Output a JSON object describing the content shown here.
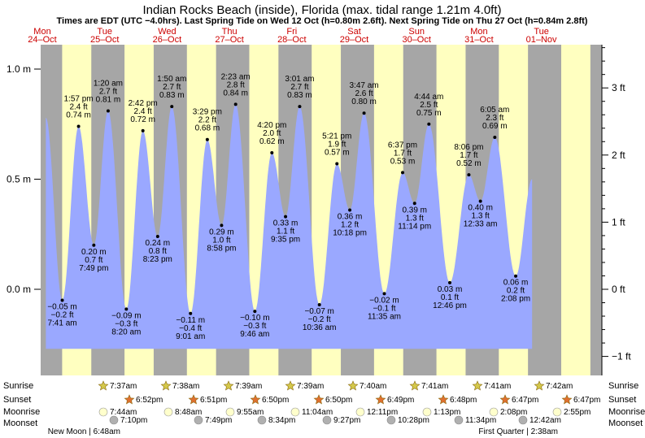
{
  "title": "Indian Rocks Beach (inside), Florida (max. tidal range 1.21m 4.0ft)",
  "subtitle": "Times are EDT (UTC −4.0hrs). Last Spring Tide on Wed 12 Oct (h=0.80m 2.6ft). Next Spring Tide on Thu 27 Oct (h=0.84m 2.8ft)",
  "colors": {
    "water": "#9aa8ff",
    "day": "#ffffc0",
    "night": "#a6a6a6",
    "label": "#cc0000",
    "sun": "#d4c84a",
    "sunset": "#e07030",
    "moonrise": "#ffffcc",
    "moonset": "#b0b0b0"
  },
  "days": [
    {
      "dow": "Mon",
      "date": "24–Oct"
    },
    {
      "dow": "Tue",
      "date": "25–Oct"
    },
    {
      "dow": "Wed",
      "date": "26–Oct"
    },
    {
      "dow": "Thu",
      "date": "27–Oct"
    },
    {
      "dow": "Fri",
      "date": "28–Oct"
    },
    {
      "dow": "Sat",
      "date": "29–Oct"
    },
    {
      "dow": "Sun",
      "date": "30–Oct"
    },
    {
      "dow": "Mon",
      "date": "31–Oct"
    },
    {
      "dow": "Tue",
      "date": "01–Nov"
    }
  ],
  "row_labels": [
    "Sunrise",
    "Sunset",
    "Moonrise",
    "Moonset"
  ],
  "chart_data": {
    "type": "area",
    "ylabel_left_unit": "m",
    "ylabel_right_unit": "ft",
    "ylim_m": [
      -0.27,
      1.07
    ],
    "left_ticks": [
      "1.0 m",
      "0.5 m",
      "0.0 m"
    ],
    "left_tick_values": [
      1.0,
      0.5,
      0.0
    ],
    "right_ticks": [
      "3 ft",
      "2 ft",
      "1 ft",
      "0 ft",
      "−1 ft"
    ],
    "right_tick_values_ft": [
      3,
      2,
      1,
      0,
      -1
    ],
    "tides": [
      {
        "day": 0,
        "hour": 7.68,
        "m": -0.05,
        "l1": "−0.05 m",
        "l2": "−0.2 ft",
        "l3": "7:41 am",
        "high": false
      },
      {
        "day": 0,
        "hour": 13.95,
        "m": 0.74,
        "l1": "1:57 pm",
        "l2": "2.4 ft",
        "l3": "0.74 m",
        "high": true
      },
      {
        "day": 0,
        "hour": 19.82,
        "m": 0.2,
        "l1": "0.20 m",
        "l2": "0.7 ft",
        "l3": "7:49 pm",
        "high": false
      },
      {
        "day": 1,
        "hour": 1.33,
        "m": 0.81,
        "l1": "1:20 am",
        "l2": "2.7 ft",
        "l3": "0.81 m",
        "high": true
      },
      {
        "day": 1,
        "hour": 8.33,
        "m": -0.09,
        "l1": "−0.09 m",
        "l2": "−0.3 ft",
        "l3": "8:20 am",
        "high": false
      },
      {
        "day": 1,
        "hour": 14.7,
        "m": 0.72,
        "l1": "2:42 pm",
        "l2": "2.4 ft",
        "l3": "0.72 m",
        "high": true
      },
      {
        "day": 1,
        "hour": 20.38,
        "m": 0.24,
        "l1": "0.24 m",
        "l2": "0.8 ft",
        "l3": "8:23 pm",
        "high": false
      },
      {
        "day": 2,
        "hour": 1.83,
        "m": 0.83,
        "l1": "1:50 am",
        "l2": "2.7 ft",
        "l3": "0.83 m",
        "high": true
      },
      {
        "day": 2,
        "hour": 9.02,
        "m": -0.11,
        "l1": "−0.11 m",
        "l2": "−0.4 ft",
        "l3": "9:01 am",
        "high": false
      },
      {
        "day": 2,
        "hour": 15.48,
        "m": 0.68,
        "l1": "3:29 pm",
        "l2": "2.2 ft",
        "l3": "0.68 m",
        "high": true
      },
      {
        "day": 2,
        "hour": 20.97,
        "m": 0.29,
        "l1": "0.29 m",
        "l2": "1.0 ft",
        "l3": "8:58 pm",
        "high": false
      },
      {
        "day": 3,
        "hour": 2.38,
        "m": 0.84,
        "l1": "2:23 am",
        "l2": "2.8 ft",
        "l3": "0.84 m",
        "high": true
      },
      {
        "day": 3,
        "hour": 9.77,
        "m": -0.1,
        "l1": "−0.10 m",
        "l2": "−0.3 ft",
        "l3": "9:46 am",
        "high": false
      },
      {
        "day": 3,
        "hour": 16.33,
        "m": 0.62,
        "l1": "4:20 pm",
        "l2": "2.0 ft",
        "l3": "0.62 m",
        "high": true
      },
      {
        "day": 3,
        "hour": 21.58,
        "m": 0.33,
        "l1": "0.33 m",
        "l2": "1.1 ft",
        "l3": "9:35 pm",
        "high": false
      },
      {
        "day": 4,
        "hour": 3.02,
        "m": 0.83,
        "l1": "3:01 am",
        "l2": "2.7 ft",
        "l3": "0.83 m",
        "high": true
      },
      {
        "day": 4,
        "hour": 10.6,
        "m": -0.07,
        "l1": "−0.07 m",
        "l2": "−0.2 ft",
        "l3": "10:36 am",
        "high": false
      },
      {
        "day": 4,
        "hour": 17.35,
        "m": 0.57,
        "l1": "5:21 pm",
        "l2": "1.9 ft",
        "l3": "0.57 m",
        "high": true
      },
      {
        "day": 4,
        "hour": 22.3,
        "m": 0.36,
        "l1": "0.36 m",
        "l2": "1.2 ft",
        "l3": "10:18 pm",
        "high": false
      },
      {
        "day": 5,
        "hour": 3.78,
        "m": 0.8,
        "l1": "3:47 am",
        "l2": "2.6 ft",
        "l3": "0.80 m",
        "high": true
      },
      {
        "day": 5,
        "hour": 11.58,
        "m": -0.02,
        "l1": "−0.02 m",
        "l2": "−0.1 ft",
        "l3": "11:35 am",
        "high": false
      },
      {
        "day": 5,
        "hour": 18.62,
        "m": 0.53,
        "l1": "6:37 pm",
        "l2": "1.7 ft",
        "l3": "0.53 m",
        "high": true
      },
      {
        "day": 5,
        "hour": 23.23,
        "m": 0.39,
        "l1": "0.39 m",
        "l2": "1.3 ft",
        "l3": "11:14 pm",
        "high": false
      },
      {
        "day": 6,
        "hour": 4.73,
        "m": 0.75,
        "l1": "4:44 am",
        "l2": "2.5 ft",
        "l3": "0.75 m",
        "high": true
      },
      {
        "day": 6,
        "hour": 12.77,
        "m": 0.03,
        "l1": "0.03 m",
        "l2": "0.1 ft",
        "l3": "12:46 pm",
        "high": false
      },
      {
        "day": 6,
        "hour": 20.1,
        "m": 0.52,
        "l1": "8:06 pm",
        "l2": "1.7 ft",
        "l3": "0.52 m",
        "high": true
      },
      {
        "day": 7,
        "hour": 0.55,
        "m": 0.4,
        "l1": "0.40 m",
        "l2": "1.3 ft",
        "l3": "12:33 am",
        "high": false
      },
      {
        "day": 7,
        "hour": 6.08,
        "m": 0.69,
        "l1": "6:05 am",
        "l2": "2.3 ft",
        "l3": "0.69 m",
        "high": true
      },
      {
        "day": 7,
        "hour": 14.13,
        "m": 0.06,
        "l1": "0.06 m",
        "l2": "0.2 ft",
        "l3": "2:08 pm",
        "high": false
      }
    ]
  },
  "sunrise": [
    "7:37am",
    "7:38am",
    "7:39am",
    "7:39am",
    "7:40am",
    "7:41am",
    "7:41am",
    "7:42am"
  ],
  "sunset": [
    "6:52pm",
    "6:51pm",
    "6:50pm",
    "6:50pm",
    "6:49pm",
    "6:48pm",
    "6:47pm",
    "6:47pm"
  ],
  "moonrise": [
    "7:44am",
    "8:48am",
    "9:55am",
    "11:04am",
    "12:11pm",
    "1:13pm",
    "2:08pm",
    "2:55pm"
  ],
  "moonset": [
    "7:10pm",
    "7:49pm",
    "8:34pm",
    "9:27pm",
    "10:28pm",
    "11:34pm",
    "12:42am"
  ],
  "moon_phases": [
    {
      "label": "New Moon | 6:48am"
    },
    {
      "label": "First Quarter | 2:38am"
    }
  ]
}
